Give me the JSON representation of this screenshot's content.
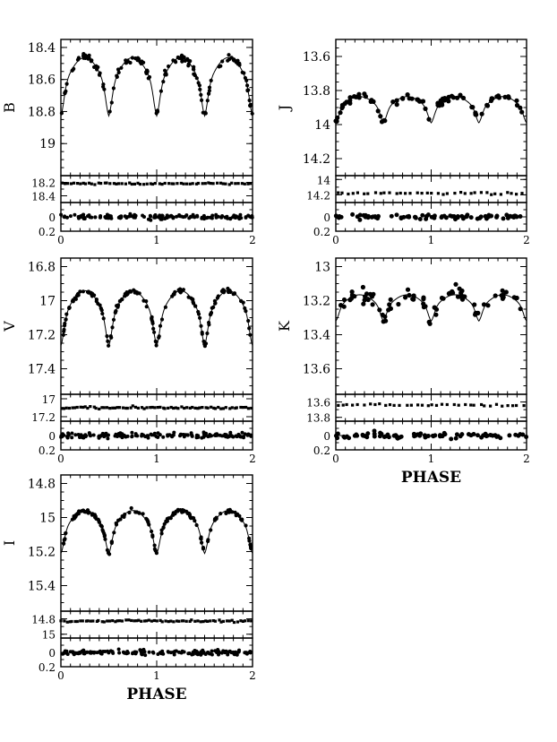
{
  "chart_data": [
    {
      "type": "scatter",
      "band": "B",
      "ylabel": "B",
      "xlabel": "",
      "xlim": [
        0,
        2
      ],
      "xticks": [
        "0",
        "1",
        "2"
      ],
      "main": {
        "ylim": [
          19.2,
          18.35
        ],
        "yticks": [
          "18.4",
          "18.6",
          "18.8",
          "19"
        ],
        "mean": 18.71,
        "amplitude": 0.52,
        "min_phase": 0.5,
        "max_phase": 0.25,
        "scatter": 0.02,
        "n_points": 140
      },
      "middle": {
        "ylim": [
          18.5,
          18.1
        ],
        "yticks": [
          "18.2",
          "18.4"
        ],
        "level": 18.22
      },
      "residual": {
        "ylim": [
          0.2,
          -0.2
        ],
        "yticks": [
          "0",
          "0.2"
        ]
      }
    },
    {
      "type": "scatter",
      "band": "J",
      "ylabel": "J",
      "xlabel": "",
      "xlim": [
        0,
        2
      ],
      "xticks": [
        "0",
        "1",
        "2"
      ],
      "main": {
        "ylim": [
          14.3,
          13.5
        ],
        "yticks": [
          "13.6",
          "13.8",
          "14",
          "14.2"
        ],
        "mean": 13.94,
        "amplitude": 0.22,
        "min_phase": 0.5,
        "max_phase": 0.25,
        "scatter": 0.018,
        "n_points": 80
      },
      "middle": {
        "ylim": [
          14.3,
          13.95
        ],
        "yticks": [
          "14",
          "14.2"
        ],
        "level": 14.18
      },
      "residual": {
        "ylim": [
          0.2,
          -0.2
        ],
        "yticks": [
          "0",
          "0.2"
        ]
      }
    },
    {
      "type": "scatter",
      "band": "V",
      "ylabel": "V",
      "xlabel": "",
      "xlim": [
        0,
        2
      ],
      "xticks": [
        "0",
        "1",
        "2"
      ],
      "main": {
        "ylim": [
          17.55,
          16.75
        ],
        "yticks": [
          "16.8",
          "17",
          "17.2",
          "17.4"
        ],
        "mean": 17.16,
        "amplitude": 0.46,
        "min_phase": 0.5,
        "max_phase": 0.25,
        "scatter": 0.012,
        "n_points": 160
      },
      "middle": {
        "ylim": [
          17.25,
          16.95
        ],
        "yticks": [
          "17",
          "17.2"
        ],
        "level": 17.1
      },
      "residual": {
        "ylim": [
          0.2,
          -0.2
        ],
        "yticks": [
          "0",
          "0.2"
        ]
      }
    },
    {
      "type": "scatter",
      "band": "K",
      "ylabel": "K",
      "xlabel": "PHASE",
      "xlim": [
        0,
        2
      ],
      "xticks": [
        "0",
        "1",
        "2"
      ],
      "main": {
        "ylim": [
          13.75,
          12.95
        ],
        "yticks": [
          "13",
          "13.2",
          "13.4",
          "13.6"
        ],
        "mean": 13.27,
        "amplitude": 0.22,
        "min_phase": 0.5,
        "max_phase": 0.25,
        "scatter": 0.035,
        "n_points": 80
      },
      "middle": {
        "ylim": [
          13.85,
          13.5
        ],
        "yticks": [
          "13.6",
          "13.8"
        ],
        "level": 13.64
      },
      "residual": {
        "ylim": [
          0.2,
          -0.2
        ],
        "yticks": [
          "0",
          "0.2"
        ]
      }
    },
    {
      "type": "scatter",
      "band": "I",
      "ylabel": "I",
      "xlabel": "PHASE",
      "xlim": [
        0,
        2
      ],
      "xticks": [
        "0",
        "1",
        "2"
      ],
      "main": {
        "ylim": [
          15.55,
          14.75
        ],
        "yticks": [
          "14.8",
          "15",
          "15.2",
          "15.4"
        ],
        "mean": 15.13,
        "amplitude": 0.36,
        "min_phase": 0.5,
        "max_phase": 0.25,
        "scatter": 0.01,
        "n_points": 160
      },
      "middle": {
        "ylim": [
          15.05,
          14.7
        ],
        "yticks": [
          "14.8",
          "15"
        ],
        "level": 14.83
      },
      "residual": {
        "ylim": [
          0.2,
          -0.2
        ],
        "yticks": [
          "0",
          "0.2"
        ]
      }
    }
  ]
}
